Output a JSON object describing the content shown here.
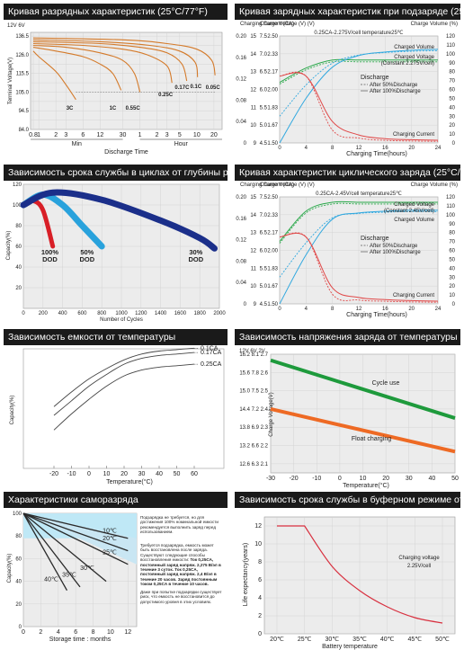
{
  "panels": {
    "discharge": {
      "title": "Кривая разрядных характеристик (25°C/77°F)",
      "axis_units": "12V  6V",
      "ylabel": "Terminal Voltage(V)",
      "y_ticks": [
        "13",
        "12",
        "11",
        "10",
        "9",
        "8"
      ],
      "y_ticks2": [
        "6.5",
        "6.0",
        "5.5",
        "5.0",
        "4.5",
        "4.0"
      ],
      "x_ticks": [
        "0.8",
        "1",
        "2",
        "3",
        "6",
        "12",
        "30",
        "1",
        "2",
        "3",
        "5",
        "10",
        "20"
      ],
      "x_group_min": "Min",
      "x_group_hour": "Hour",
      "xlabel": "Discharge Time",
      "curve_labels": [
        "3C",
        "1C",
        "0.55C",
        "0.25C",
        "0.17C",
        "0.1C",
        "0.05C"
      ]
    },
    "charge_float": {
      "title": "Кривая зарядных характеристик при подзаряде (25°C/77°F)",
      "hdr_left": "Charging Current (CA)",
      "hdr_mid": "Charge Voltage (V) (V)",
      "hdr_right": "Charge Volume (%)",
      "subtitle": "0.25CA-2.275V/cell temperature25℃",
      "left_ticks": [
        "0.20",
        "0.16",
        "0.12",
        "0.08",
        "0.04",
        "0"
      ],
      "v12_ticks": [
        "15",
        "14",
        "13",
        "12",
        "11",
        "10",
        "9"
      ],
      "v6_ticks": [
        "7.5",
        "7.0",
        "6.5",
        "6.0",
        "5.5",
        "5.0",
        "4.5"
      ],
      "vc_ticks": [
        "2.50",
        "2.33",
        "2.17",
        "2.00",
        "1.83",
        "1.67",
        "1.50"
      ],
      "right_ticks": [
        "120",
        "110",
        "100",
        "90",
        "80",
        "70",
        "60",
        "50",
        "40",
        "30",
        "20",
        "10",
        "0"
      ],
      "x_ticks": [
        "0",
        "4",
        "8",
        "12",
        "16",
        "20",
        "24"
      ],
      "xlabel": "Charging Time(hours)",
      "label_volume": "Charged Volume",
      "label_voltage": "Charged Voltage (Constant 2.275V/cell)",
      "label_current": "Charging Current",
      "legend_title": "Discharge",
      "legend_dash": "After 50%Discharge",
      "legend_solid": "After 100%Discharge"
    },
    "cycle_life": {
      "title": "Зависимость срока службы в циклах от глубины разряда",
      "ylabel": "Capacity(%)",
      "y_ticks": [
        "120",
        "100",
        "80",
        "60",
        "40",
        "20"
      ],
      "x_ticks": [
        "0",
        "200",
        "400",
        "600",
        "800",
        "1000",
        "1200",
        "1400",
        "1600",
        "1800",
        "2000"
      ],
      "xlabel": "Number of Cycles",
      "labels": [
        "100% DOD",
        "50% DOD",
        "30% DOD"
      ]
    },
    "cycle_charge": {
      "title": "Кривая характеристик циклического заряда (25°C/77°F)",
      "hdr_left": "Charging Current (CA)",
      "hdr_mid": "Charge Voltage (V) (V)",
      "hdr_right": "Charge Volume (%)",
      "subtitle": "0.25CA-2.45V/cell temperature25℃",
      "left_ticks": [
        "0.20",
        "0.16",
        "0.12",
        "0.08",
        "0.04",
        "0"
      ],
      "v12_ticks": [
        "15",
        "14",
        "13",
        "12",
        "11",
        "10",
        "9"
      ],
      "v6_ticks": [
        "7.5",
        "7.0",
        "6.5",
        "6.0",
        "5.5",
        "5.0",
        "4.5"
      ],
      "vc_ticks": [
        "2.50",
        "2.33",
        "2.17",
        "2.00",
        "1.83",
        "1.67",
        "1.50"
      ],
      "right_ticks": [
        "120",
        "110",
        "100",
        "90",
        "80",
        "70",
        "60",
        "50",
        "40",
        "30",
        "20",
        "10",
        "0"
      ],
      "x_ticks": [
        "0",
        "4",
        "8",
        "12",
        "16",
        "20",
        "24"
      ],
      "xlabel": "Charging Time(hours)",
      "label_voltage": "Charged Voltage (Constant 2.45V/cell)",
      "label_volume": "Charged Volume",
      "label_current": "Charging Current",
      "legend_title": "Discharge",
      "legend_dash": "After 50%Discharge",
      "legend_solid": "After 100%Discharge"
    },
    "temp_capacity": {
      "title": "Зависимость емкости от температуры",
      "ylabel": "Capacity(%)",
      "x_ticks": [
        "-20",
        "-10",
        "0",
        "10",
        "20",
        "30",
        "40",
        "50",
        "60"
      ],
      "xlabel": "Temperature(°C)",
      "labels": [
        "0.1CA",
        "0.17CA",
        "0.25CA"
      ]
    },
    "temp_voltage": {
      "title": "Зависимость напряжения заряда от температуры",
      "axis_units": "12V  6V  2V",
      "ylabel": "Charge Voltage(V)",
      "y_ticks_12": [
        "16.2",
        "15.6",
        "15.0",
        "14.4",
        "13.8",
        "13.2",
        "12.6"
      ],
      "y_ticks_6": [
        "8.1",
        "7.8",
        "7.5",
        "7.2",
        "6.9",
        "6.6",
        "6.3"
      ],
      "y_ticks_2": [
        "2.7",
        "2.6",
        "2.5",
        "2.4",
        "2.3",
        "2.2",
        "2.1"
      ],
      "x_ticks": [
        "-30",
        "-20",
        "-10",
        "0",
        "10",
        "20",
        "30",
        "40",
        "50"
      ],
      "xlabel": "Temperature(°C)",
      "label_cycle": "Cycle use",
      "label_float": "Float charging",
      "color_cycle": "#1e9a3c",
      "color_float": "#ee6a24"
    },
    "self_discharge": {
      "title": "Характеристики саморазряда",
      "ylabel": "Capacity(%)",
      "y_ticks": [
        "100",
        "80",
        "60",
        "40",
        "20",
        "0"
      ],
      "x_ticks": [
        "0",
        "2",
        "4",
        "6",
        "8",
        "10",
        "12"
      ],
      "xlabel": "Storage time : months",
      "temp_labels": [
        "10℃",
        "20℃",
        "25℃",
        "30℃",
        "35℃",
        "40℃"
      ],
      "notes": [
        "Подзарядка не требуется, но для достижения 100% номинальной емкости рекомендуется выполнить заряд перед использованием.",
        "Требуется подзарядка, емкость может быть восстановлена после заряда. Существуют следующие способы восстановления емкости:",
        "Ток 0,25CA, постоянный заряд напряж. 2,275 В/эл в течение 3 суток.",
        "Ток 0,25CA, постоянный заряд напряж. 2,4 В/эл в течение 20 часов.",
        "Заряд постоянным током 0,25CA в течение 10 часов.",
        "Даже при попытке подзарядки существует риск, что емкость не восстановится до допустимого уровня в этих условиях."
      ]
    },
    "float_life": {
      "title": "Зависимость срока службы в буферном режиме от темп.",
      "ylabel": "Life expectancy(years)",
      "y_ticks": [
        "12",
        "10",
        "8",
        "6",
        "4",
        "2",
        "0"
      ],
      "x_ticks": [
        "20℃",
        "25℃",
        "30℃",
        "35℃",
        "40℃",
        "45℃",
        "50℃"
      ],
      "xlabel": "Battery temperature",
      "label": "Charging voltage 2.25V/cell"
    }
  },
  "chart_data": [
    {
      "type": "line",
      "title": "Кривая разрядных характеристик (25°C/77°F)",
      "xlabel": "Discharge Time",
      "ylabel": "Terminal Voltage(V)",
      "ylim": [
        8,
        13.2
      ],
      "series": [
        {
          "name": "3C",
          "x": [
            0.8,
            1,
            2,
            3,
            4.5
          ],
          "y": [
            12.2,
            11.9,
            11.1,
            10.4,
            9.6
          ]
        },
        {
          "name": "1C",
          "x": [
            0.8,
            2,
            6,
            12,
            20,
            28
          ],
          "y": [
            12.4,
            12.2,
            11.9,
            11.5,
            11.0,
            10.1
          ]
        },
        {
          "name": "0.55C",
          "x": [
            0.8,
            3,
            12,
            30,
            48,
            60
          ],
          "y": [
            12.5,
            12.4,
            12.1,
            11.7,
            11.0,
            10.0
          ]
        },
        {
          "name": "0.25C",
          "x": [
            0.8,
            6,
            30,
            80,
            180,
            220
          ],
          "y": [
            12.6,
            12.5,
            12.3,
            12.0,
            11.4,
            10.5
          ]
        },
        {
          "name": "0.17C",
          "x": [
            0.8,
            12,
            60,
            180,
            330,
            400
          ],
          "y": [
            12.7,
            12.6,
            12.4,
            12.1,
            11.5,
            10.6
          ]
        },
        {
          "name": "0.1C",
          "x": [
            0.8,
            12,
            90,
            300,
            560,
            620
          ],
          "y": [
            12.8,
            12.7,
            12.5,
            12.2,
            11.6,
            10.8
          ]
        },
        {
          "name": "0.05C",
          "x": [
            0.8,
            30,
            180,
            600,
            1100,
            1260
          ],
          "y": [
            12.9,
            12.8,
            12.6,
            12.3,
            11.7,
            10.9
          ]
        }
      ]
    },
    {
      "type": "line",
      "title": "Кривая зарядных характеристик при подзаряде (25°C/77°F)",
      "subtitle": "0.25CA-2.275V/cell temperature25℃",
      "xlabel": "Charging Time(hours)",
      "x": [
        0,
        4,
        8,
        12,
        16,
        20,
        24
      ],
      "series": [
        {
          "name": "Charged Volume",
          "values": [
            0,
            50,
            85,
            98,
            102,
            104,
            105
          ],
          "unit": "%"
        },
        {
          "name": "Charged Voltage",
          "values": [
            12.4,
            13.2,
            13.65,
            13.65,
            13.65,
            13.65,
            13.65
          ],
          "unit": "V"
        },
        {
          "name": "Charging Current",
          "values": [
            0.125,
            0.125,
            0.04,
            0.015,
            0.008,
            0.006,
            0.005
          ],
          "unit": "CA"
        }
      ]
    },
    {
      "type": "line",
      "title": "Зависимость срока службы в циклах от глубины разряда",
      "xlabel": "Number of Cycles",
      "ylabel": "Capacity(%)",
      "ylim": [
        0,
        120
      ],
      "xlim": [
        0,
        2000
      ],
      "series": [
        {
          "name": "100% DOD",
          "x": [
            0,
            100,
            200,
            300
          ],
          "y": [
            100,
            104,
            95,
            60
          ]
        },
        {
          "name": "50% DOD",
          "x": [
            0,
            200,
            400,
            600,
            800
          ],
          "y": [
            100,
            110,
            100,
            80,
            60
          ]
        },
        {
          "name": "30% DOD",
          "x": [
            0,
            300,
            800,
            1400,
            1800,
            1950
          ],
          "y": [
            100,
            112,
            105,
            85,
            68,
            58
          ]
        }
      ]
    },
    {
      "type": "line",
      "title": "Кривая характеристик циклического заряда (25°C/77°F)",
      "subtitle": "0.25CA-2.45V/cell temperature25℃",
      "xlabel": "Charging Time(hours)",
      "x": [
        0,
        4,
        8,
        12,
        16,
        20,
        24
      ],
      "series": [
        {
          "name": "Charged Voltage",
          "values": [
            12.5,
            14.2,
            14.7,
            14.7,
            14.7,
            14.7,
            14.7
          ],
          "unit": "V"
        },
        {
          "name": "Charged Volume",
          "values": [
            0,
            55,
            95,
            102,
            104,
            105,
            105
          ],
          "unit": "%"
        },
        {
          "name": "Charging Current",
          "values": [
            0.125,
            0.125,
            0.03,
            0.012,
            0.008,
            0.006,
            0.005
          ],
          "unit": "CA"
        }
      ]
    },
    {
      "type": "line",
      "title": "Зависимость емкости от температуры",
      "xlabel": "Temperature(°C)",
      "ylabel": "Capacity(%)",
      "x": [
        -20,
        -10,
        0,
        10,
        20,
        30,
        40,
        50,
        60
      ],
      "series": [
        {
          "name": "0.1CA",
          "values": [
            68,
            78,
            87,
            94,
            100,
            104,
            106,
            107,
            108
          ]
        },
        {
          "name": "0.17CA",
          "values": [
            62,
            72,
            82,
            90,
            97,
            101,
            103,
            104,
            105
          ]
        },
        {
          "name": "0.25CA",
          "values": [
            52,
            63,
            73,
            82,
            89,
            93,
            95,
            96,
            97
          ]
        }
      ]
    },
    {
      "type": "line",
      "title": "Зависимость напряжения заряда от температуры",
      "xlabel": "Temperature(°C)",
      "ylabel": "Charge Voltage(V)",
      "ylim": [
        12.3,
        16.2
      ],
      "x": [
        -30,
        50
      ],
      "series": [
        {
          "name": "Cycle use",
          "values": [
            16.0,
            14.1
          ]
        },
        {
          "name": "Float charging",
          "values": [
            14.4,
            13.0
          ]
        }
      ]
    },
    {
      "type": "line",
      "title": "Характеристики саморазряда",
      "xlabel": "Storage time : months",
      "ylabel": "Capacity(%)",
      "ylim": [
        0,
        100
      ],
      "xlim": [
        0,
        12
      ],
      "series": [
        {
          "name": "10℃",
          "x": [
            0,
            12
          ],
          "y": [
            100,
            78
          ]
        },
        {
          "name": "20℃",
          "x": [
            0,
            12
          ],
          "y": [
            100,
            67
          ]
        },
        {
          "name": "25℃",
          "x": [
            0,
            12
          ],
          "y": [
            100,
            55
          ]
        },
        {
          "name": "30℃",
          "x": [
            0,
            9.5
          ],
          "y": [
            100,
            40
          ]
        },
        {
          "name": "35℃",
          "x": [
            0,
            6.5
          ],
          "y": [
            100,
            35
          ]
        },
        {
          "name": "40℃",
          "x": [
            0,
            5
          ],
          "y": [
            100,
            32
          ]
        }
      ]
    },
    {
      "type": "line",
      "title": "Зависимость срока службы в буферном режиме от темп.",
      "xlabel": "Battery temperature",
      "ylabel": "Life expectancy(years)",
      "ylim": [
        0,
        12
      ],
      "x": [
        20,
        25,
        30,
        35,
        40,
        45,
        50
      ],
      "series": [
        {
          "name": "Charging voltage 2.25V/cell",
          "values": [
            12,
            12,
            7.5,
            4.8,
            3.0,
            1.8,
            1.2
          ]
        }
      ]
    }
  ]
}
